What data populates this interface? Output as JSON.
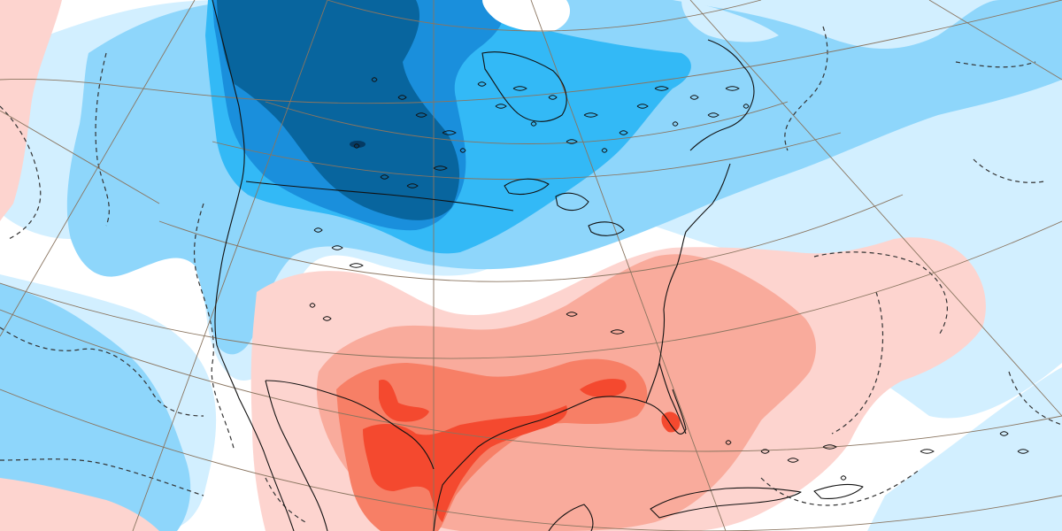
{
  "map": {
    "projection": "polar-stereographic",
    "region": "North America",
    "anomaly_colors": {
      "cold_extreme": "#08659e",
      "cold_strong": "#1a8fdc",
      "cold_moderate": "#33b9f6",
      "cold_weak": "#8ed6fb",
      "cold_slight": "#d2efff",
      "neutral": "#ffffff",
      "warm_slight": "#fdd4cf",
      "warm_weak": "#f9ab9c",
      "warm_moderate": "#f77f66",
      "warm_strong": "#f4492f"
    },
    "line_colors": {
      "coastline": "#111111",
      "graticule": "#8a7560",
      "contour_dashed": "#333333"
    },
    "layers": [
      "anomaly-fill",
      "contour-dashed",
      "graticule",
      "coastline"
    ],
    "icons": [
      "map-legend-none"
    ]
  }
}
